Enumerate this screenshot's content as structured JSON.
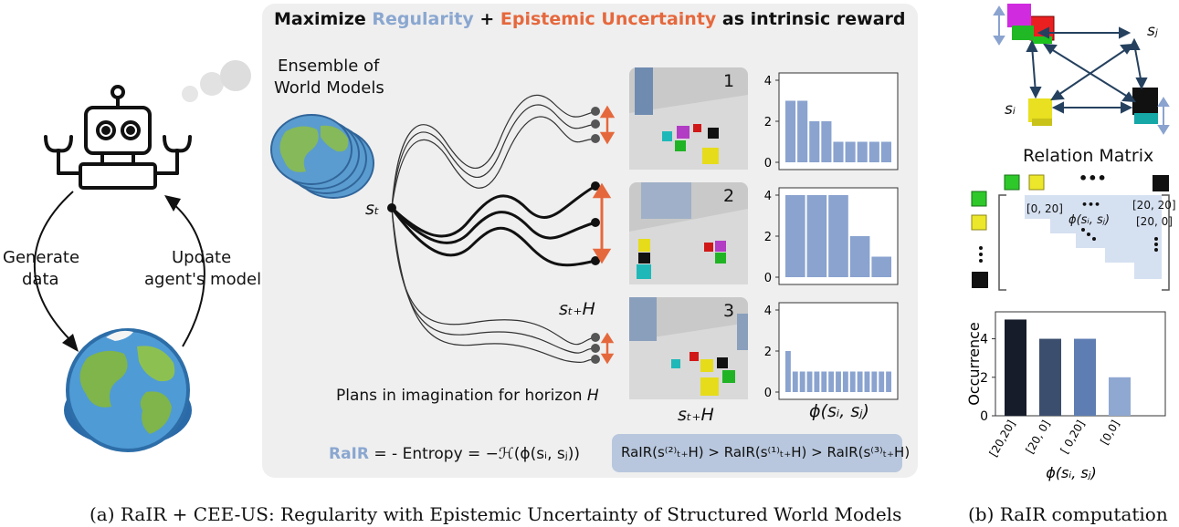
{
  "panel_a": {
    "title_part1": "Maximize ",
    "title_regularity": "Regularity",
    "title_plus": " + ",
    "title_epistemic": "Epistemic Uncertainty",
    "title_part2": " as intrinsic reward",
    "ensemble_line1": "Ensemble of",
    "ensemble_line2": "World Models",
    "plans_text": "Plans in imagination for horizon ",
    "plans_var": "H",
    "rair_label": "RaIR",
    "rair_formula_rest": " = - Entropy = −ℋ(ϕ(sᵢ, sⱼ))",
    "ordering": "RaIR(s⁽²⁾ₜ₊H) > RaIR(s⁽¹⁾ₜ₊H) > RaIR(s⁽³⁾ₜ₊H)",
    "state_st": "sₜ",
    "state_sth_mid": "sₜ₊H",
    "state_sth_bottom": "sₜ₊H",
    "phi_label": "ϕ(sᵢ, sⱼ)",
    "scene_numbers": [
      "1",
      "2",
      "3"
    ],
    "left_generate_line1": "Generate",
    "left_generate_line2": "data",
    "left_update_line1": "Update",
    "left_update_line2": "agent's model",
    "caption_a": "(a) RaIR + CEE-US: Regularity with Epistemic Uncertainty of Structured World Models"
  },
  "histograms": [
    {
      "ylim": [
        0,
        4
      ],
      "ticks": [
        "0",
        "2",
        "4"
      ],
      "values": [
        3,
        3,
        2,
        2,
        1,
        1,
        1,
        1,
        1
      ]
    },
    {
      "ylim": [
        0,
        4
      ],
      "ticks": [
        "0",
        "2",
        "4"
      ],
      "values": [
        4,
        4,
        4,
        2,
        1
      ]
    },
    {
      "ylim": [
        0,
        4
      ],
      "ticks": [
        "0",
        "2",
        "4"
      ],
      "values": [
        2,
        1,
        1,
        1,
        1,
        1,
        1,
        1,
        1,
        1,
        1,
        1,
        1,
        1,
        1
      ]
    }
  ],
  "panel_b": {
    "si_label": "sᵢ",
    "sj_label": "sⱼ",
    "matrix_title": "Relation Matrix",
    "matrix_cells": [
      "[0, 20]",
      "ϕ(sᵢ, sⱼ)",
      "[20, 20]",
      "[20, 0]"
    ],
    "ellipsis": "•••",
    "caption_b": "(b) RaIR computation"
  },
  "chart_data": {
    "type": "bar",
    "categories": [
      "[20,20]",
      "[20, 0]",
      "[ 0,20]",
      "[0,0]"
    ],
    "values": [
      5,
      4,
      4,
      2
    ],
    "colors": [
      "#161c2a",
      "#3c4e6e",
      "#5e7db2",
      "#8fa8d2"
    ],
    "ylabel": "Occurrence",
    "xlabel": "ϕ(sᵢ, sⱼ)",
    "yticks": [
      "0",
      "2",
      "4"
    ],
    "ylim": [
      0,
      5.4
    ]
  },
  "colors": {
    "regularity": "#8aa7d0",
    "epistemic": "#e5683d",
    "bar_blue": "#8aa3cf",
    "panel_bg": "#efefef"
  }
}
